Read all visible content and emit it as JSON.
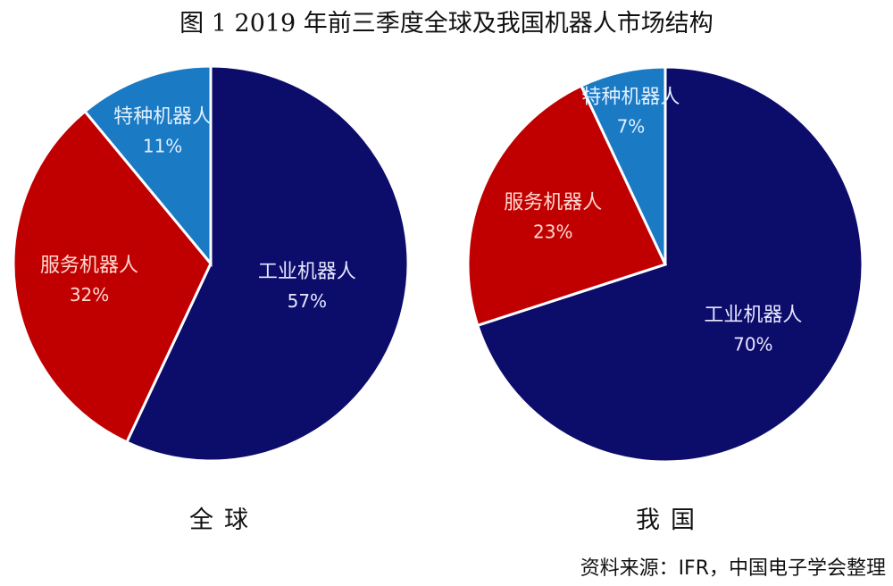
{
  "chart_data": [
    {
      "type": "pie",
      "title": "图 1   2019 年前三季度全球及我国机器人市场结构",
      "caption": "全球",
      "slices": [
        {
          "label": "工业机器人",
          "value": 57,
          "value_label": "57%",
          "color": "#0c0c6b"
        },
        {
          "label": "服务机器人",
          "value": 32,
          "value_label": "32%",
          "color": "#c00000"
        },
        {
          "label": "特种机器人",
          "value": 11,
          "value_label": "11%",
          "color": "#1a7ac4"
        }
      ],
      "start_angle": "12 o'clock",
      "direction": "clockwise"
    },
    {
      "type": "pie",
      "caption": "我国",
      "slices": [
        {
          "label": "工业机器人",
          "value": 70,
          "value_label": "70%",
          "color": "#0c0c6b"
        },
        {
          "label": "服务机器人",
          "value": 23,
          "value_label": "23%",
          "color": "#c00000"
        },
        {
          "label": "特种机器人",
          "value": 7,
          "value_label": "7%",
          "color": "#1a7ac4"
        }
      ],
      "start_angle": "12 o'clock",
      "direction": "clockwise"
    }
  ],
  "source": "资料来源：IFR，中国电子学会整理"
}
